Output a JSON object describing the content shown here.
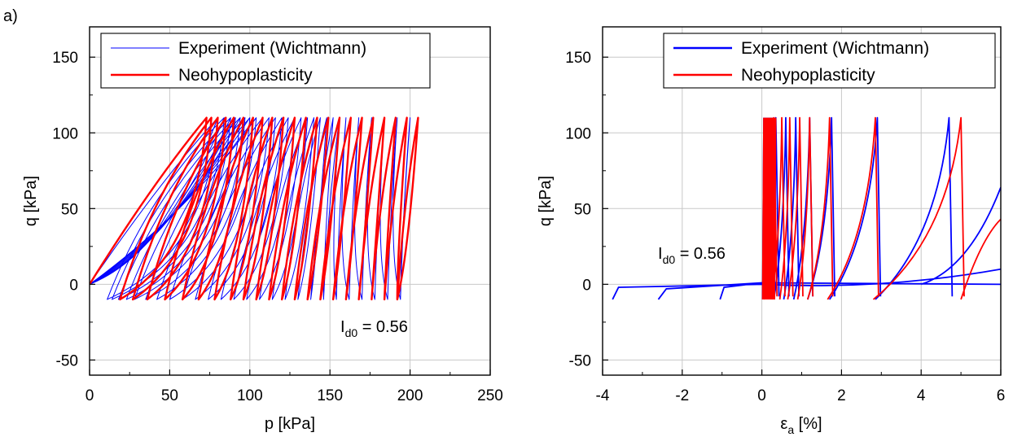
{
  "panel_label": "a)",
  "colors": {
    "experiment": "#0000ff",
    "model": "#ff0000",
    "grid": "#c8c8c8"
  },
  "chart_data": [
    {
      "type": "line",
      "xlabel": "p [kPa]",
      "ylabel": "q [kPa]",
      "xlim": [
        0,
        250
      ],
      "ylim": [
        -60,
        170
      ],
      "xticks": [
        "0",
        "50",
        "100",
        "150",
        "200",
        "250"
      ],
      "yticks": [
        "-50",
        "0",
        "50",
        "100",
        "150"
      ],
      "grid": true,
      "legend_position": "top",
      "annotation": {
        "text": "I",
        "sub": "d0",
        "rest": " = 0.56"
      },
      "series": [
        {
          "name": "Experiment (Wichtmann)",
          "color": "#0000ff",
          "line": "thin",
          "cycles": {
            "q_max": 110,
            "q_min": -10,
            "p_at_qmin": [
              11,
              14,
              18,
              23,
              28,
              35,
              42,
              50,
              58,
              66,
              74,
              82,
              90,
              98,
              106,
              114,
              122,
              130,
              138,
              146,
              154,
              162,
              170,
              178,
              186,
              194
            ],
            "p_at_qmax": [
              80,
              84,
              88,
              91,
              94,
              97,
              100,
              104,
              108,
              112,
              116,
              120,
              124,
              128,
              132,
              136,
              140,
              144,
              148,
              152,
              156,
              160,
              168,
              176,
              184,
              192,
              200
            ]
          }
        },
        {
          "name": "Neohypoplasticity",
          "color": "#ff0000",
          "line": "thick",
          "cycles": {
            "q_max": 110,
            "q_min": -10,
            "p_at_qmin": [
              19,
              27,
              36,
              47,
              58,
              68,
              78,
              88,
              96,
              104,
              112,
              120,
              128,
              136,
              144,
              152,
              160,
              168,
              176,
              184,
              192
            ],
            "p_at_qmax": [
              73,
              76,
              80,
              85,
              90,
              96,
              102,
              108,
              114,
              121,
              128,
              135,
              142,
              149,
              156,
              163,
              170,
              177,
              184,
              191,
              198,
              205
            ]
          }
        }
      ]
    },
    {
      "type": "line",
      "xlabel": "ε",
      "xlabel_sub": "a",
      "xlabel_rest": " [%]",
      "ylabel": "q [kPa]",
      "xlim": [
        -4,
        6
      ],
      "ylim": [
        -60,
        170
      ],
      "xticks": [
        "-4",
        "-2",
        "0",
        "2",
        "4",
        "6"
      ],
      "yticks": [
        "-50",
        "0",
        "50",
        "100",
        "150"
      ],
      "grid": true,
      "legend_position": "top",
      "annotation": {
        "text": "I",
        "sub": "d0",
        "rest": " = 0.56"
      },
      "series": [
        {
          "name": "Experiment (Wichtmann)",
          "color": "#0000ff",
          "line": "medium",
          "peaks_x": [
            0.35,
            0.6,
            0.85,
            1.2,
            1.75,
            2.9,
            4.7
          ]
        },
        {
          "name": "Neohypoplasticity",
          "color": "#ff0000",
          "line": "medium",
          "peaks_x": [
            0.3,
            0.5,
            0.7,
            0.95,
            1.2,
            1.7,
            2.85,
            5.0
          ]
        }
      ]
    }
  ]
}
